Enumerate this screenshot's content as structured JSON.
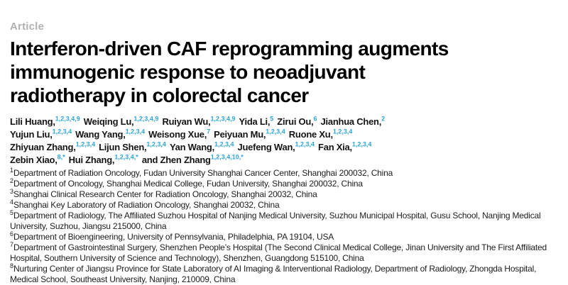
{
  "article": {
    "kicker": "Article",
    "title_lines": [
      "Interferon-driven CAF reprogramming augments",
      "immunogenic response to neoadjuvant",
      "radiotherapy in colorectal cancer"
    ],
    "author_lines": [
      [
        {
          "name": "Lili Huang,",
          "sup": "1,2,3,4,9"
        },
        {
          "name": "Weiqing Lu,",
          "sup": "1,2,3,4,9"
        },
        {
          "name": "Ruiyan Wu,",
          "sup": "1,2,3,4,9"
        },
        {
          "name": "Yida Li,",
          "sup": "5"
        },
        {
          "name": "Zirui Ou,",
          "sup": "6"
        },
        {
          "name": "Jianhua Chen,",
          "sup": "2"
        }
      ],
      [
        {
          "name": "Yujun Liu,",
          "sup": "1,2,3,4"
        },
        {
          "name": "Wang Yang,",
          "sup": "1,2,3,4"
        },
        {
          "name": "Weisong Xue,",
          "sup": "7"
        },
        {
          "name": "Peiyuan Mu,",
          "sup": "1,2,3,4"
        },
        {
          "name": "Ruone Xu,",
          "sup": "1,2,3,4"
        }
      ],
      [
        {
          "name": "Zhiyuan Zhang,",
          "sup": "1,2,3,4"
        },
        {
          "name": "Lijun Shen,",
          "sup": "1,2,3,4"
        },
        {
          "name": "Yan Wang,",
          "sup": "1,2,3,4"
        },
        {
          "name": "Juefeng Wan,",
          "sup": "1,2,3,4"
        },
        {
          "name": "Fan Xia,",
          "sup": "1,2,3,4"
        }
      ],
      [
        {
          "name": "Zebin Xiao,",
          "sup": "8,*"
        },
        {
          "name": "Hui Zhang,",
          "sup": "1,2,3,4,*"
        },
        {
          "name": "and Zhen Zhang",
          "sup": "1,2,3,4,10,*"
        }
      ]
    ],
    "affiliations": [
      {
        "sup": "1",
        "text": "Department of Radiation Oncology, Fudan University Shanghai Cancer Center, Shanghai 200032, China"
      },
      {
        "sup": "2",
        "text": "Department of Oncology, Shanghai Medical College, Fudan University, Shanghai 200032, China"
      },
      {
        "sup": "3",
        "text": "Shanghai Clinical Research Center for Radiation Oncology, Shanghai 20032, China"
      },
      {
        "sup": "4",
        "text": "Shanghai Key Laboratory of Radiation Oncology, Shanghai 20032, China"
      },
      {
        "sup": "5",
        "text": "Department of Radiology, The Affiliated Suzhou Hospital of Nanjing Medical University, Suzhou Municipal Hospital, Gusu School, Nanjing Medical University, Suzhou, Jiangsu 215000, China"
      },
      {
        "sup": "6",
        "text": "Department of Bioengineering, University of Pennsylvania, Philadelphia, PA 19104, USA"
      },
      {
        "sup": "7",
        "text": "Department of Gastrointestinal Surgery, Shenzhen People’s Hospital (The Second Clinical Medical College, Jinan University and The First Affiliated Hospital, Southern University of Science and Technology), Shenzhen, Guangdong 515100, China"
      },
      {
        "sup": "8",
        "text": "Nurturing Center of Jiangsu Province for State Laboratory of AI Imaging & Interventional Radiology, Department of Radiology, Zhongda Hospital, Medical School, Southeast University, Nanjing, 210009, China"
      }
    ],
    "colors": {
      "superscript_blue": "#2fa6d9",
      "kicker_gray": "#b1b1b3",
      "title_black": "#000000"
    }
  }
}
